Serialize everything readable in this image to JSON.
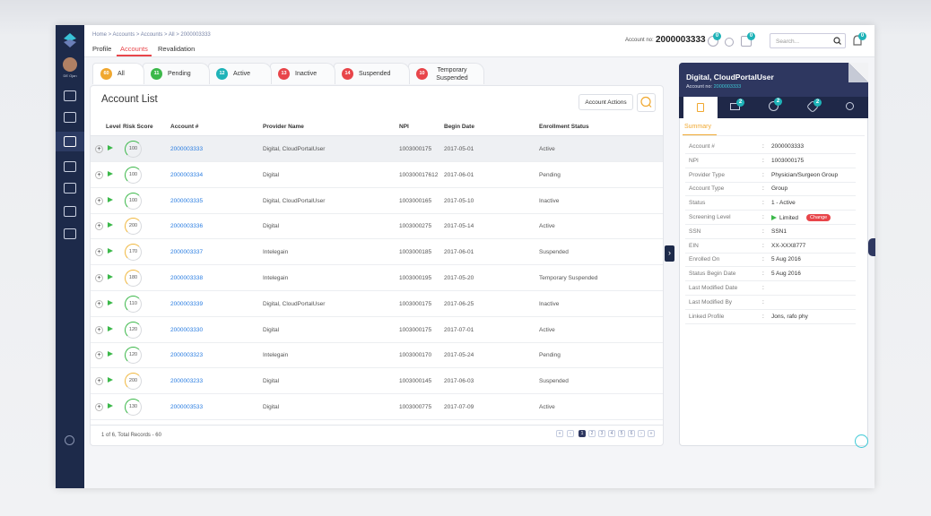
{
  "header": {
    "breadcrumb": "Home > Accounts > Accounts > All > 2000003333",
    "tabs": [
      "Profile",
      "Accounts",
      "Revalidation"
    ],
    "account_label": "Account no:",
    "account_no": "2000003333",
    "icon_badges": [
      "0",
      "0",
      "0"
    ],
    "search_placeholder": "Search...",
    "bell_badge": "0"
  },
  "sidebar": {
    "user": "DE Ojan"
  },
  "status_tabs": [
    {
      "count": 60,
      "label": "All",
      "color": "#f0a830"
    },
    {
      "count": 11,
      "label": "Pending",
      "color": "#3cb84a"
    },
    {
      "count": 12,
      "label": "Active",
      "color": "#1fb3b8"
    },
    {
      "count": 13,
      "label": "Inactive",
      "color": "#e8454a"
    },
    {
      "count": 14,
      "label": "Suspended",
      "color": "#e8454a"
    },
    {
      "count": 10,
      "label": "Temporary Suspended",
      "color": "#e8454a"
    }
  ],
  "account_list": {
    "title": "Account List",
    "actions_button": "Account Actions",
    "columns": [
      "Level",
      "Risk Score",
      "Account #",
      "Provider Name",
      "NPI",
      "Begin Date",
      "Enrollment Status"
    ],
    "rows": [
      {
        "risk": 100,
        "color": "#3cb84a",
        "account": "2000003333",
        "provider": "Digital, CloudPortalUser",
        "npi": "1003000175",
        "begin": "2017-05-01",
        "status": "Active"
      },
      {
        "risk": 100,
        "color": "#3cb84a",
        "account": "2000003334",
        "provider": "Digital",
        "npi": "100300017612",
        "begin": "2017-06-01",
        "status": "Pending"
      },
      {
        "risk": 100,
        "color": "#3cb84a",
        "account": "2000003335",
        "provider": "Digital, CloudPortalUser",
        "npi": "1003000165",
        "begin": "2017-05-10",
        "status": "Inactive"
      },
      {
        "risk": 200,
        "color": "#f0b840",
        "account": "2000003336",
        "provider": "Digital",
        "npi": "1003000275",
        "begin": "2017-05-14",
        "status": "Active"
      },
      {
        "risk": 170,
        "color": "#f0b840",
        "account": "2000003337",
        "provider": "Intelegain",
        "npi": "1003000185",
        "begin": "2017-06-01",
        "status": "Suspended"
      },
      {
        "risk": 180,
        "color": "#f0b840",
        "account": "2000003338",
        "provider": "Intelegain",
        "npi": "1003000195",
        "begin": "2017-05-20",
        "status": "Temporary Suspended"
      },
      {
        "risk": 110,
        "color": "#3cb84a",
        "account": "2000003339",
        "provider": "Digital, CloudPortalUser",
        "npi": "1003000175",
        "begin": "2017-06-25",
        "status": "Inactive"
      },
      {
        "risk": 120,
        "color": "#3cb84a",
        "account": "2000003330",
        "provider": "Digital",
        "npi": "1003000175",
        "begin": "2017-07-01",
        "status": "Active"
      },
      {
        "risk": 120,
        "color": "#3cb84a",
        "account": "2000003323",
        "provider": "Intelegain",
        "npi": "1003000170",
        "begin": "2017-05-24",
        "status": "Pending"
      },
      {
        "risk": 200,
        "color": "#f0b840",
        "account": "2000003233",
        "provider": "Digital",
        "npi": "1003000145",
        "begin": "2017-06-03",
        "status": "Suspended"
      },
      {
        "risk": 130,
        "color": "#3cb84a",
        "account": "2000003533",
        "provider": "Digital",
        "npi": "1003000775",
        "begin": "2017-07-09",
        "status": "Active"
      }
    ],
    "footer": "1 of 6, Total Records - 60",
    "pages": [
      "1",
      "2",
      "3",
      "4",
      "5",
      "6"
    ]
  },
  "summary_panel": {
    "name": "Digital, CloudPortalUser",
    "account_label": "Account no:",
    "account_no": "2000003333",
    "tab_badges": [
      "2",
      "2",
      "2"
    ],
    "tab": "Summary",
    "separator": ":",
    "change_button": "Change",
    "fields": [
      {
        "label": "Account #",
        "value": "2000003333"
      },
      {
        "label": "NPI",
        "value": "1003000175"
      },
      {
        "label": "Provider Type",
        "value": "Physician/Surgeon Group"
      },
      {
        "label": "Account Type",
        "value": "Group"
      },
      {
        "label": "Status",
        "value": "1 - Active"
      },
      {
        "label": "Screening Level",
        "value": "Limited"
      },
      {
        "label": "SSN",
        "value": "SSN1"
      },
      {
        "label": "EIN",
        "value": "XX-XXX8777"
      },
      {
        "label": "Enrolled On",
        "value": "5 Aug 2016"
      },
      {
        "label": "Status Begin Date",
        "value": "5 Aug 2016"
      },
      {
        "label": "Last Modified Date"
      },
      {
        "label": "Last Modified By"
      },
      {
        "label": "Linked Profile",
        "value": "Jons, rafo phy"
      }
    ]
  }
}
